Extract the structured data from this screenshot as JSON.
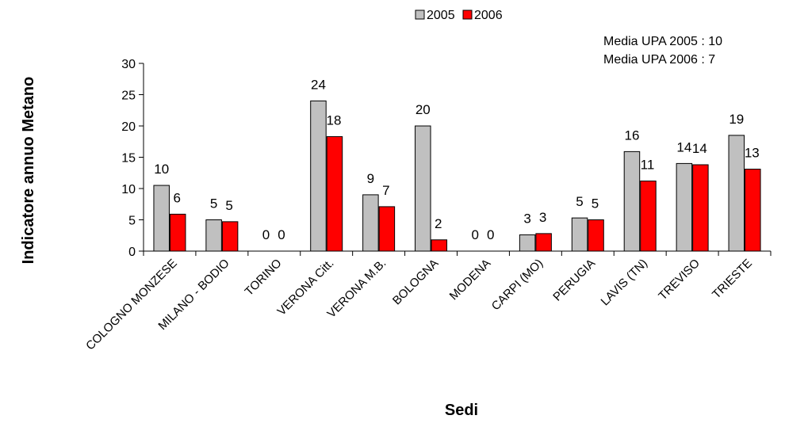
{
  "chart_data": {
    "type": "bar",
    "categories": [
      "COLOGNO MONZESE",
      "MILANO - BODIO",
      "TORINO",
      "VERONA Citt.",
      "VERONA M.B.",
      "BOLOGNA",
      "MODENA",
      "CARPI (MO)",
      "PERUGIA",
      "LAVIS (TN)",
      "TREVISO",
      "TRIESTE"
    ],
    "series": [
      {
        "name": "2005",
        "color": "#c0c0c0",
        "values": [
          10.5,
          5.0,
          0,
          24.0,
          9.0,
          20.0,
          0,
          2.6,
          5.3,
          15.9,
          14.0,
          18.5
        ],
        "labels": [
          "10",
          "5",
          "0",
          "24",
          "9",
          "20",
          "0",
          "3",
          "5",
          "16",
          "14",
          "19"
        ]
      },
      {
        "name": "2006",
        "color": "#ff0000",
        "values": [
          5.9,
          4.7,
          0,
          18.3,
          7.1,
          1.8,
          0,
          2.8,
          5.0,
          11.2,
          13.8,
          13.1
        ],
        "labels": [
          "6",
          "5",
          "0",
          "18",
          "7",
          "2",
          "0",
          "3",
          "5",
          "11",
          "14",
          "13"
        ]
      }
    ],
    "xlabel": "Sedi",
    "ylabel": "Indicatore annuo Metano",
    "ylim": [
      0,
      30
    ],
    "yticks": [
      "0",
      "5",
      "10",
      "15",
      "20",
      "25",
      "30"
    ],
    "annotations": [
      "Media UPA 2005 : 10",
      "Media UPA 2006 : 7"
    ],
    "legend_position": "top",
    "grid": false
  }
}
